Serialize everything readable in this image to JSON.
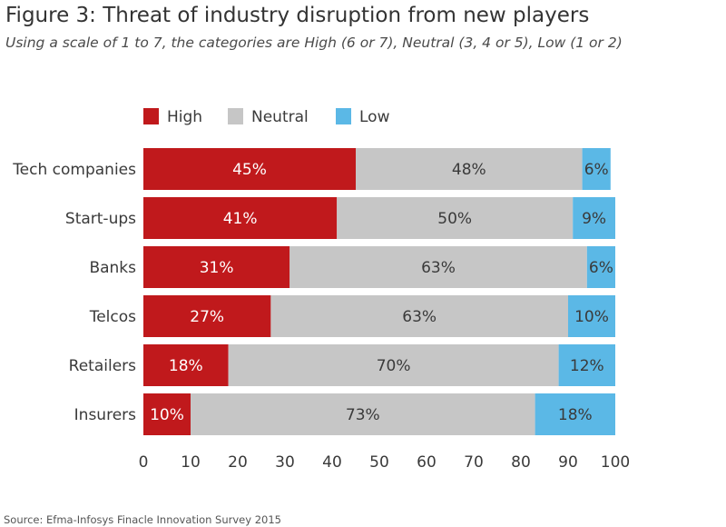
{
  "title": "Figure 3: Threat of industry disruption from new players",
  "subtitle": "Using a scale of 1 to 7, the categories are High (6 or 7), Neutral (3, 4 or 5), Low (1 or 2)",
  "source": "Source: Efma-Infosys Finacle Innovation Survey 2015",
  "chart_data": {
    "type": "bar",
    "orientation": "horizontal",
    "stacked": true,
    "categories": [
      "Tech companies",
      "Start-ups",
      "Banks",
      "Telcos",
      "Retailers",
      "Insurers"
    ],
    "series": [
      {
        "name": "High",
        "values": [
          45,
          41,
          31,
          27,
          18,
          10
        ],
        "labels": [
          "45%",
          "41%",
          "31%",
          "27%",
          "18%",
          "10%"
        ],
        "color": "#c0191c",
        "label_color": "#ffffff"
      },
      {
        "name": "Neutral",
        "values": [
          48,
          50,
          63,
          63,
          70,
          73
        ],
        "labels": [
          "48%",
          "50%",
          "63%",
          "63%",
          "70%",
          "73%"
        ],
        "color": "#c6c6c6",
        "label_color": "#3a3a3a"
      },
      {
        "name": "Low",
        "values": [
          6,
          9,
          6,
          10,
          12,
          18
        ],
        "labels": [
          "6%",
          "9%",
          "6%",
          "10%",
          "12%",
          "18%"
        ],
        "color": "#5bb8e6",
        "label_color": "#3a3a3a"
      }
    ],
    "xlim": [
      0,
      100
    ],
    "xticks": [
      0,
      10,
      20,
      30,
      40,
      50,
      60,
      70,
      80,
      90,
      100
    ],
    "xtick_labels": [
      "0",
      "10",
      "20",
      "30",
      "40",
      "50",
      "60",
      "70",
      "80",
      "90",
      "100"
    ],
    "grid": false,
    "legend_placement": "top"
  }
}
